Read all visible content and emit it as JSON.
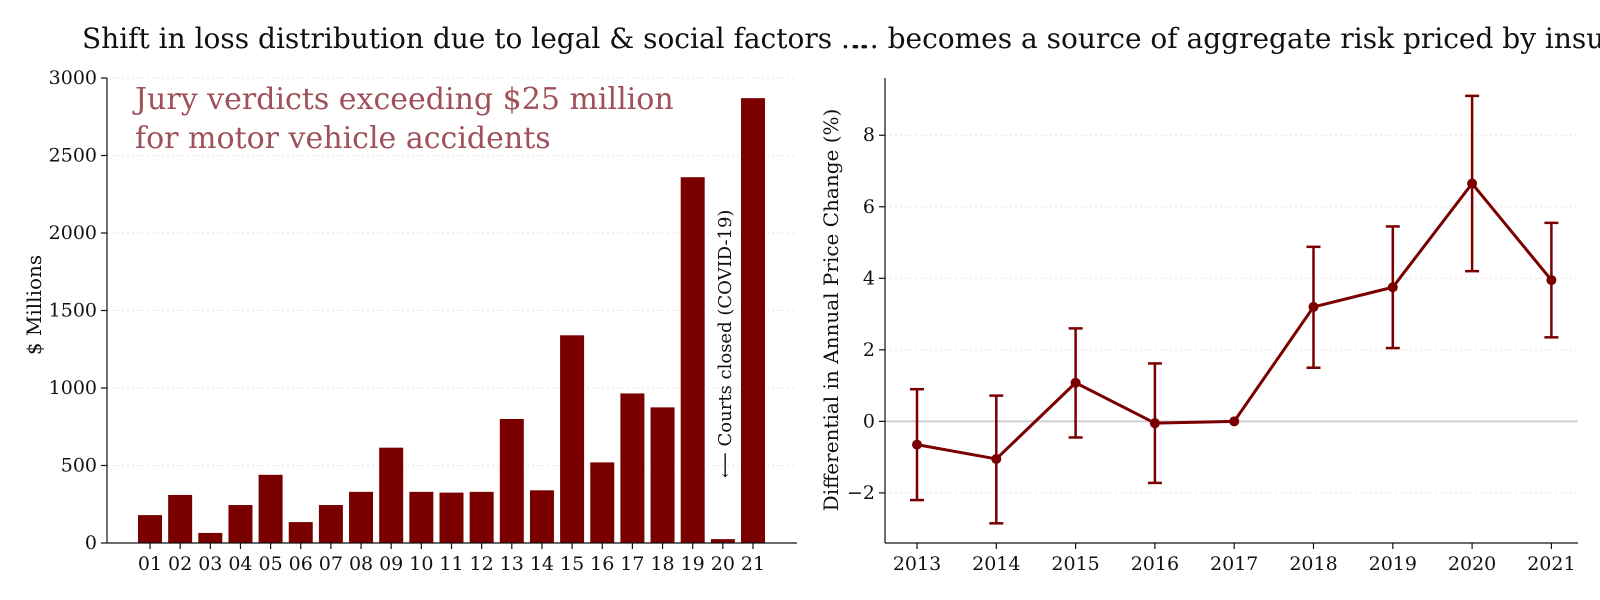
{
  "chart_data": [
    {
      "type": "bar",
      "title": "Shift in loss distribution due to legal & social factors ...",
      "annotation_lines": [
        "Jury verdicts exceeding $25 million",
        "for motor vehicle accidents"
      ],
      "note": "⟵ Courts closed (COVID-19)",
      "xlabel": "",
      "ylabel": "$ Millions",
      "categories": [
        "01",
        "02",
        "03",
        "04",
        "05",
        "06",
        "07",
        "08",
        "09",
        "10",
        "11",
        "12",
        "13",
        "14",
        "15",
        "16",
        "17",
        "18",
        "19",
        "20",
        "21"
      ],
      "values": [
        180,
        310,
        65,
        245,
        440,
        135,
        245,
        330,
        615,
        330,
        325,
        330,
        800,
        340,
        1340,
        520,
        965,
        875,
        2360,
        25,
        2870
      ],
      "ylim": [
        0,
        3000
      ],
      "yticks": [
        0,
        500,
        1000,
        1500,
        2000,
        2500,
        3000
      ],
      "grid": "horizontal",
      "color": "#7a0000"
    },
    {
      "type": "line",
      "title": "... becomes a source of aggregate risk priced by insurers",
      "xlabel": "",
      "ylabel": "Differential in Annual Price Change (%)",
      "x": [
        "2013",
        "2014",
        "2015",
        "2016",
        "2017",
        "2018",
        "2019",
        "2020",
        "2021"
      ],
      "y": [
        -0.65,
        -1.05,
        1.08,
        -0.05,
        0.0,
        3.2,
        3.75,
        6.65,
        3.95
      ],
      "error_low": [
        -2.2,
        -2.85,
        -0.45,
        -1.72,
        0.0,
        1.5,
        2.05,
        4.2,
        2.35
      ],
      "error_high": [
        0.9,
        0.72,
        2.6,
        1.62,
        0.0,
        4.88,
        5.45,
        9.1,
        5.55
      ],
      "ylim": [
        -3.4,
        9.6
      ],
      "yticks": [
        -2,
        0,
        2,
        4,
        6,
        8
      ],
      "zero_line": true,
      "grid": "horizontal",
      "color": "#7a0000"
    }
  ]
}
